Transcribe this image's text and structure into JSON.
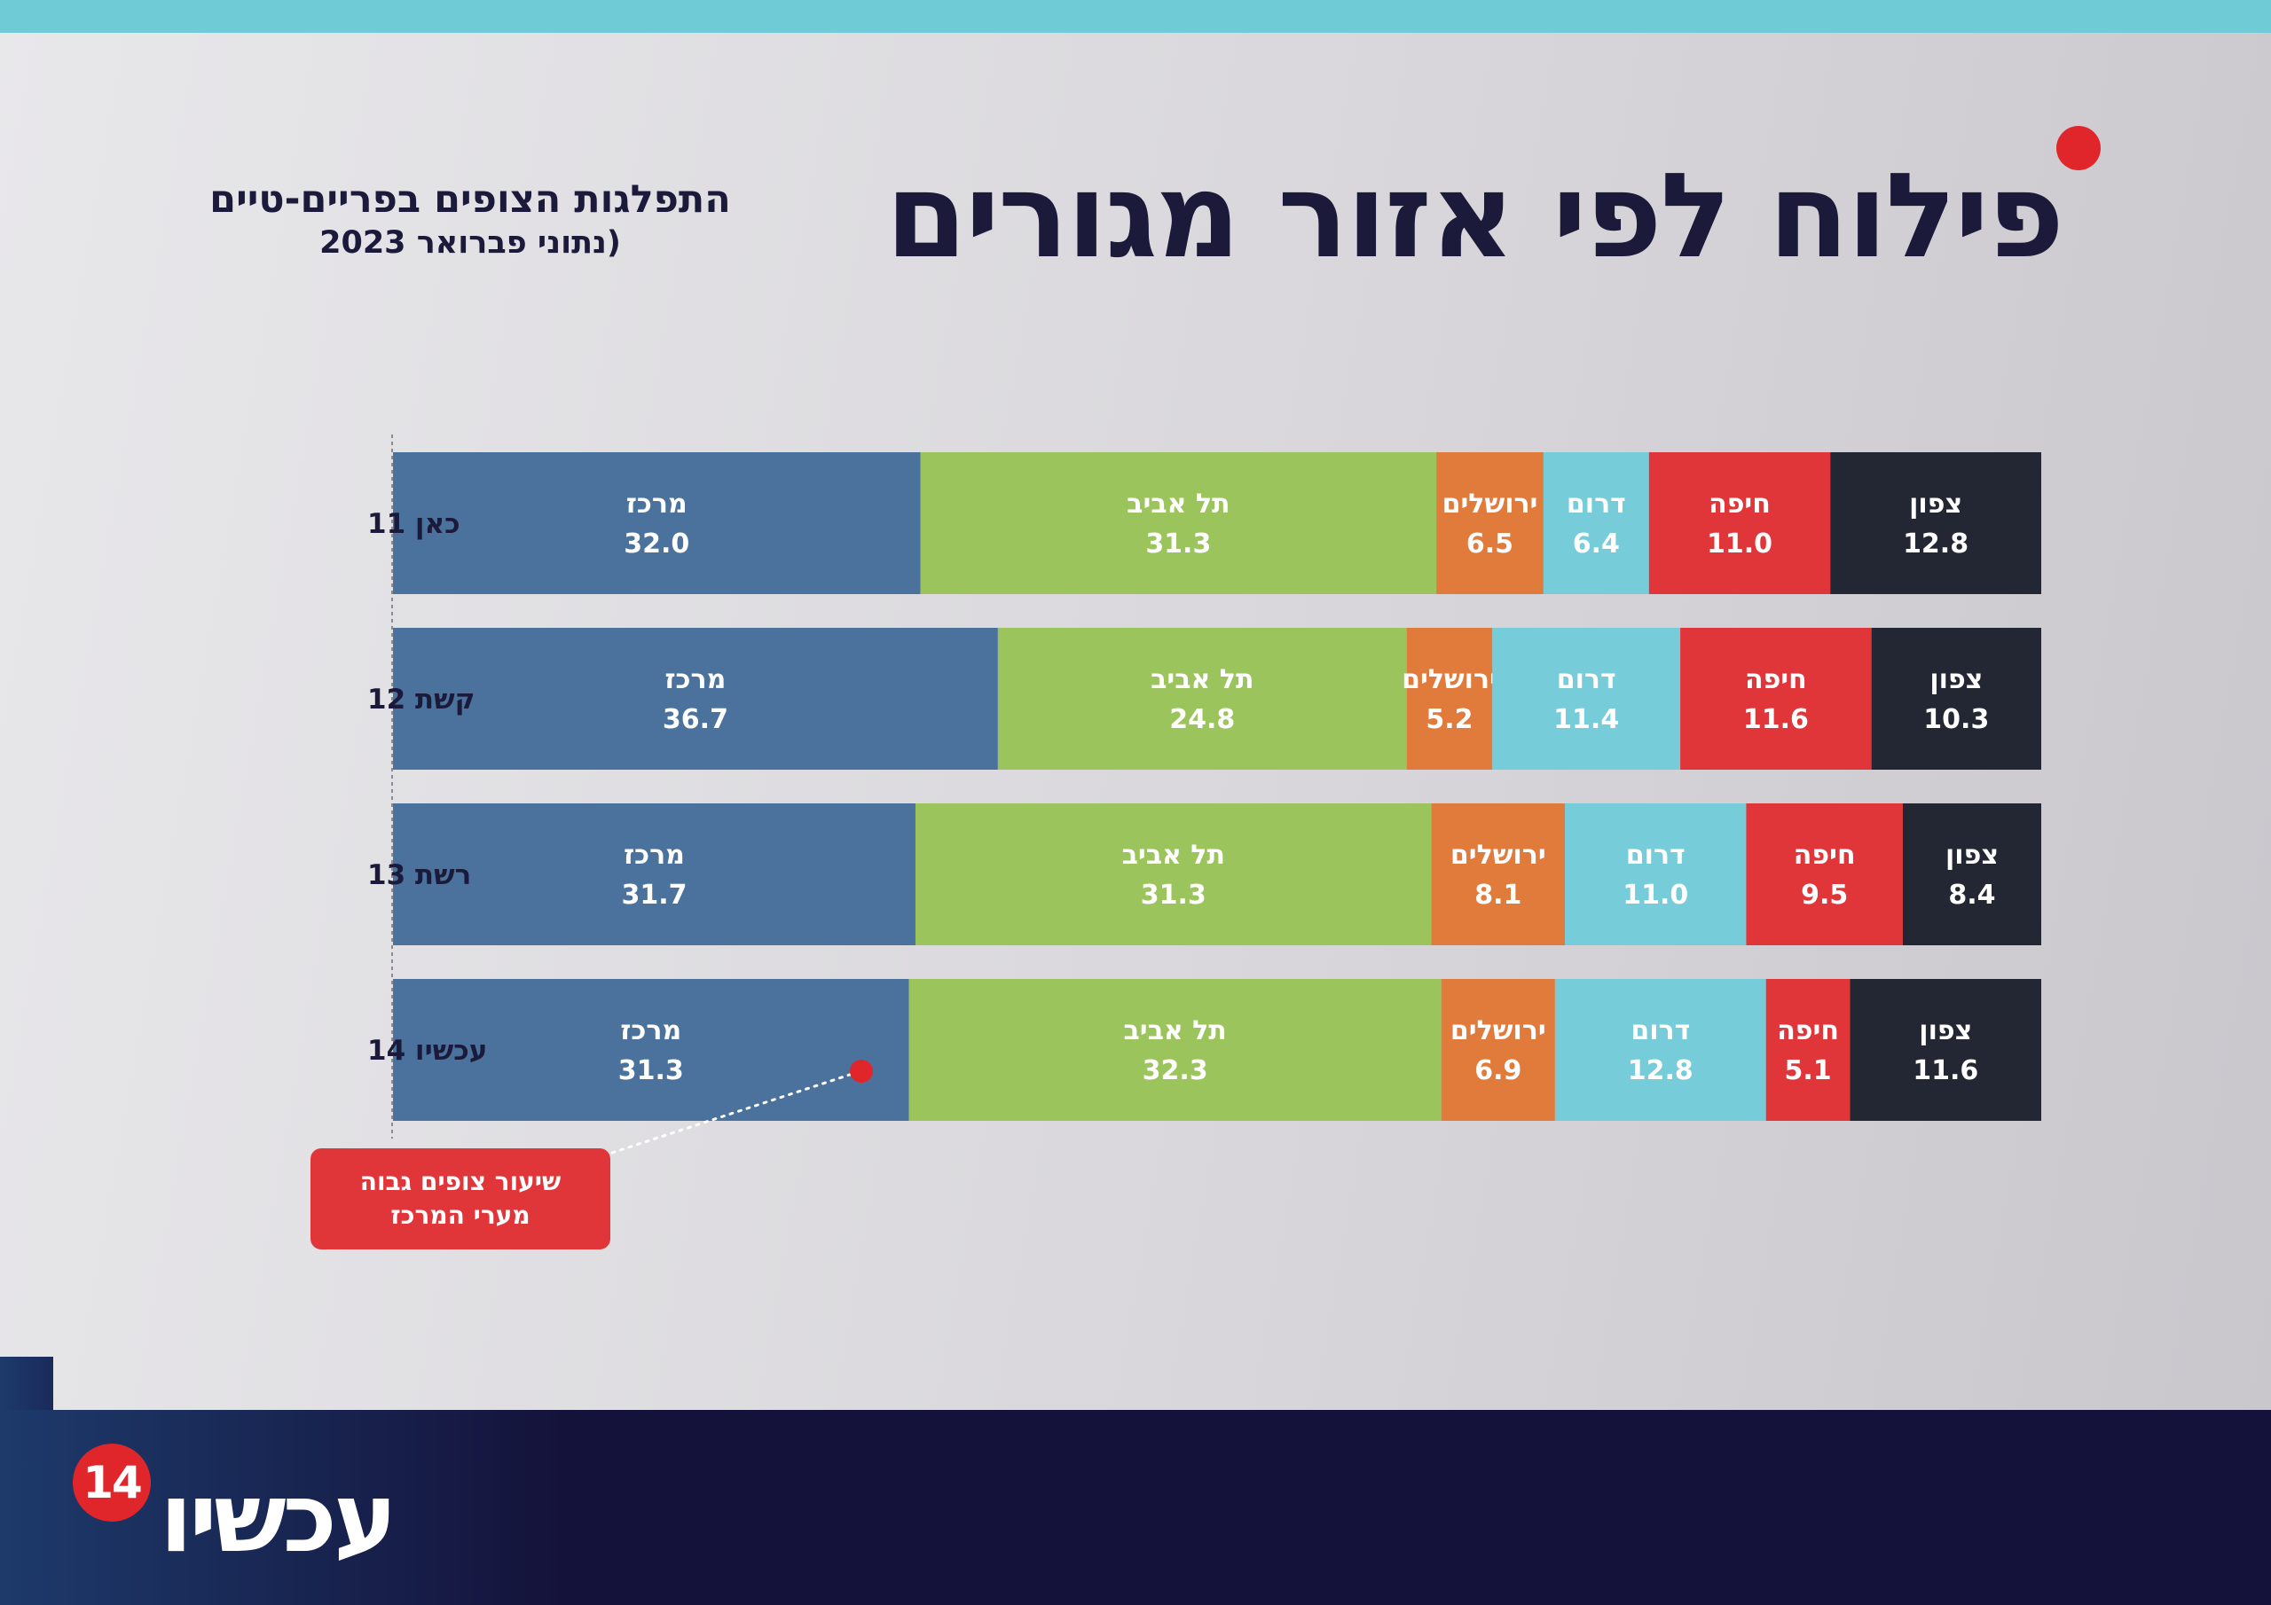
{
  "header": {
    "title": "פילוח לפי אזור מגורים",
    "subtitle_line1": "התפלגות הצופים בפריים-טיים",
    "subtitle_line2": "(נתוני פברואר 2023"
  },
  "callout": {
    "line1": "שיעור צופים גבוה",
    "line2": "מערי המרכז"
  },
  "footer": {
    "logo_text": "עכשיו",
    "logo_badge": "14"
  },
  "colors": {
    "מרכז": "#4a729c",
    "תל אביב": "#9bc45c",
    "ירושלים": "#e07b3c",
    "דרום": "#76ccd8",
    "חיפה": "#e0363a",
    "צפון": "#232733"
  },
  "chart_data": {
    "type": "bar",
    "orientation": "horizontal",
    "stacked": true,
    "categories": [
      "כאן 11",
      "קשת 12",
      "רשת 13",
      "עכשיו 14"
    ],
    "series": [
      {
        "name": "מרכז",
        "values": [
          32.0,
          36.7,
          31.7,
          31.3
        ]
      },
      {
        "name": "תל אביב",
        "values": [
          31.3,
          24.8,
          31.3,
          32.3
        ]
      },
      {
        "name": "ירושלים",
        "values": [
          6.5,
          5.2,
          8.1,
          6.9
        ]
      },
      {
        "name": "דרום",
        "values": [
          6.4,
          11.4,
          11.0,
          12.8
        ]
      },
      {
        "name": "חיפה",
        "values": [
          11.0,
          11.6,
          9.5,
          5.1
        ]
      },
      {
        "name": "צפון",
        "values": [
          12.8,
          10.3,
          8.4,
          11.6
        ]
      }
    ],
    "xlim": [
      0,
      100
    ],
    "legend": "none"
  }
}
